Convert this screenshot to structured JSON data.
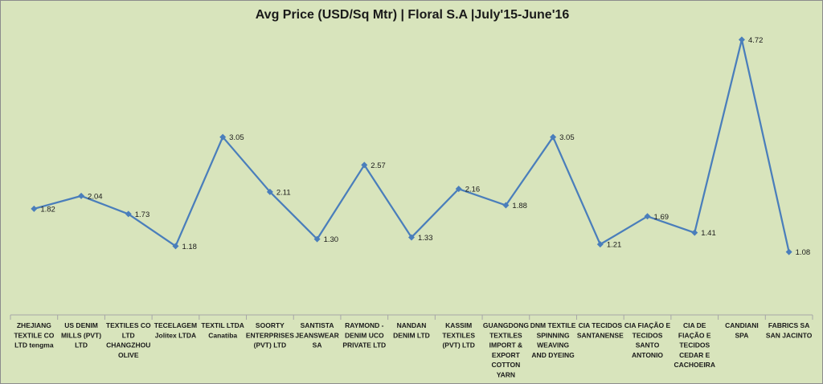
{
  "chart_data": {
    "type": "line",
    "title": "Avg Price (USD/Sq Mtr)  |  Floral S.A  |July'15-June'16",
    "xlabel": "",
    "ylabel": "",
    "ylim": [
      0,
      5
    ],
    "grid": false,
    "legend": "none",
    "categories": [
      "ZHEJIANG TEXTILE CO LTD tengma",
      "US DENIM MILLS (PVT) LTD",
      "TEXTILES CO LTD CHANGZHOU OLIVE",
      "TECELAGEM Jolitex LTDA",
      "TEXTIL LTDA Canatiba",
      "SOORTY ENTERPRISES (PVT) LTD",
      "SANTISTA JEANSWEAR SA",
      "RAYMOND - DENIM UCO PRIVATE LTD",
      "NANDAN DENIM LTD",
      "KASSIM TEXTILES (PVT) LTD",
      "GUANGDONG TEXTILES IMPORT & EXPORT COTTON YARN",
      "DNM TEXTILE SPINNING WEAVING AND DYEING",
      "CIA TECIDOS SANTANENSE",
      "CIA FIAÇÃO E TECIDOS SANTO ANTONIO",
      "CIA DE FIAÇÃO E TECIDOS CEDAR E CACHOEIRA",
      "CANDIANI SPA",
      "FABRICS SA SAN JACINTO"
    ],
    "category_lines": [
      [
        "ZHEJIANG",
        "TEXTILE CO",
        "LTD tengma"
      ],
      [
        "US DENIM",
        "MILLS (PVT)",
        "LTD"
      ],
      [
        "TEXTILES CO",
        "LTD",
        "CHANGZHOU",
        "OLIVE"
      ],
      [
        "TECELAGEM",
        "Jolitex LTDA"
      ],
      [
        "TEXTIL LTDA",
        "Canatiba"
      ],
      [
        "SOORTY",
        "ENTERPRISES",
        "(PVT) LTD"
      ],
      [
        "SANTISTA",
        "JEANSWEAR",
        "SA"
      ],
      [
        "RAYMOND -",
        "DENIM UCO",
        "PRIVATE LTD"
      ],
      [
        "NANDAN",
        "DENIM LTD"
      ],
      [
        "KASSIM",
        "TEXTILES",
        "(PVT) LTD"
      ],
      [
        "GUANGDONG",
        "TEXTILES",
        "IMPORT &",
        "EXPORT",
        "COTTON",
        "YARN"
      ],
      [
        "DNM TEXTILE",
        "SPINNING",
        "WEAVING",
        "AND DYEING"
      ],
      [
        "CIA TECIDOS",
        "SANTANENSE"
      ],
      [
        "CIA FIAÇÃO E",
        "TECIDOS",
        "SANTO",
        "ANTONIO"
      ],
      [
        "CIA DE",
        "FIAÇÃO E",
        "TECIDOS",
        "CEDAR E",
        "CACHOEIRA"
      ],
      [
        "CANDIANI",
        "SPA"
      ],
      [
        "FABRICS SA",
        "SAN JACINTO"
      ]
    ],
    "series": [
      {
        "values": [
          1.82,
          2.04,
          1.73,
          1.18,
          3.05,
          2.11,
          1.3,
          2.57,
          1.33,
          2.16,
          1.88,
          3.05,
          1.21,
          1.69,
          1.41,
          4.72,
          1.08
        ],
        "labels": [
          "1.82",
          "2.04",
          "1.73",
          "1.18",
          "3.05",
          "2.11",
          "1.30",
          "2.57",
          "1.33",
          "2.16",
          "1.88",
          "3.05",
          "1.21",
          "1.69",
          "1.41",
          "4.72",
          "1.08"
        ],
        "color": "#4a7ebb"
      }
    ],
    "colors": {
      "background": "#d8e4bc",
      "axis": "#a6a6a6",
      "text": "#1a1a1a"
    }
  }
}
